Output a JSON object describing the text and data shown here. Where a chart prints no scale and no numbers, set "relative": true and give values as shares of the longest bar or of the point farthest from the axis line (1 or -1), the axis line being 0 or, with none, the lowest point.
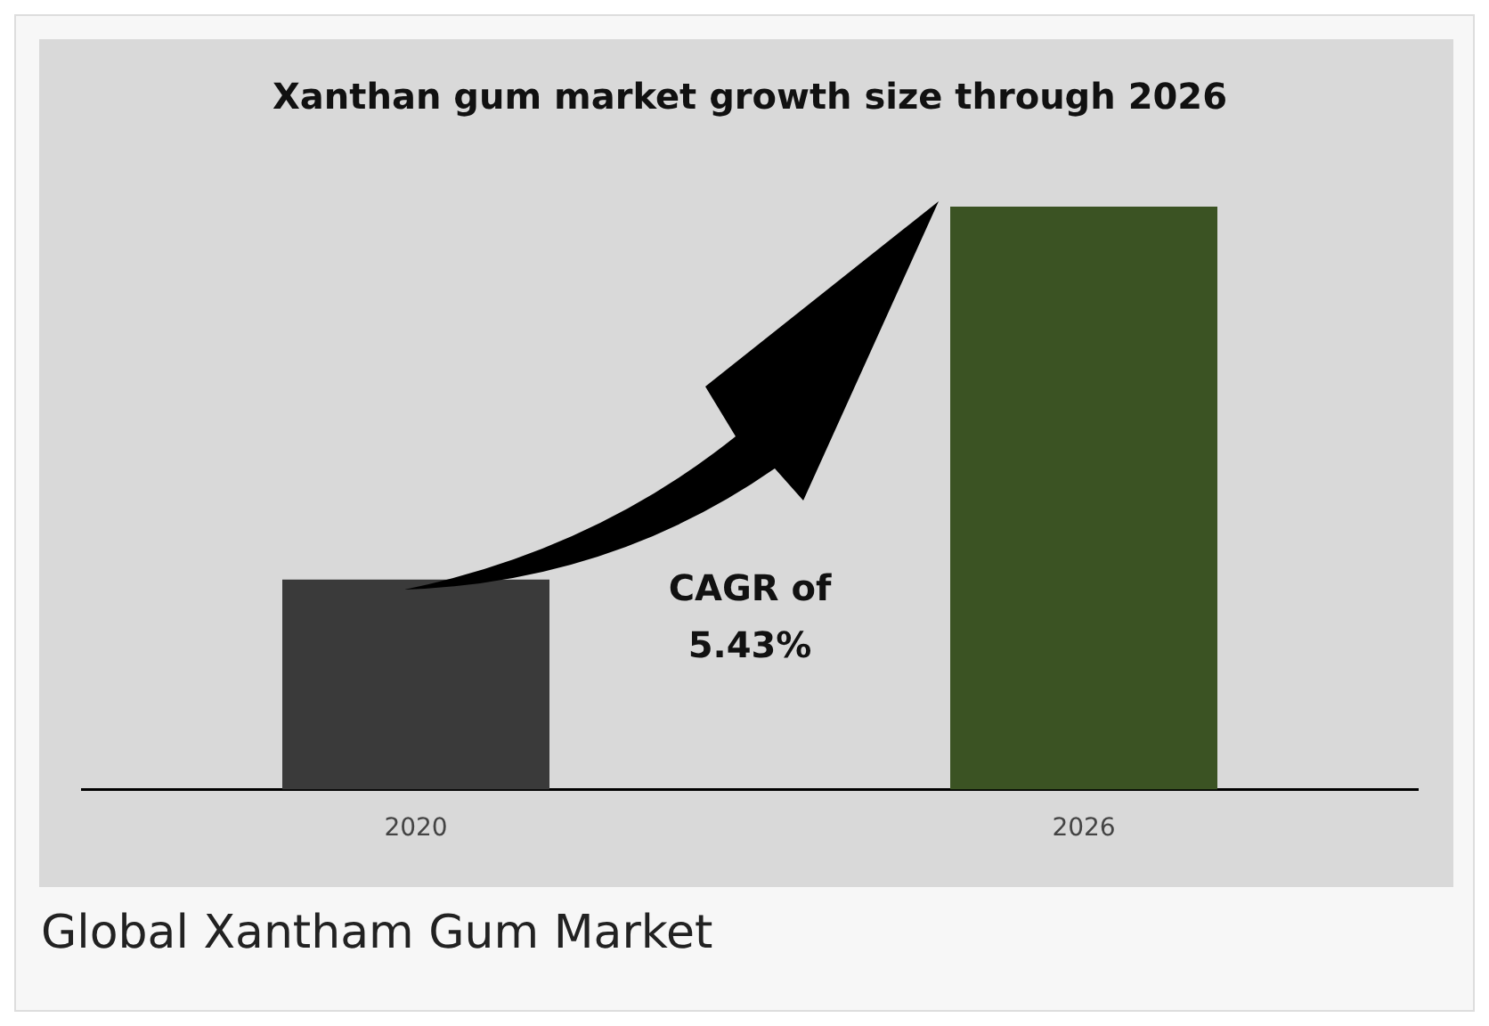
{
  "chart_data": {
    "type": "bar",
    "title": "Xanthan gum market growth size through 2026",
    "categories": [
      "2020",
      "2026"
    ],
    "values": [
      0.36,
      1
    ],
    "colors": [
      "#3a3a3a",
      "#3b5323"
    ],
    "relative": true,
    "grid": false,
    "legend": false,
    "annotations": [
      "CAGR of\n5.43%",
      "Global Xantham Gum Market"
    ]
  }
}
